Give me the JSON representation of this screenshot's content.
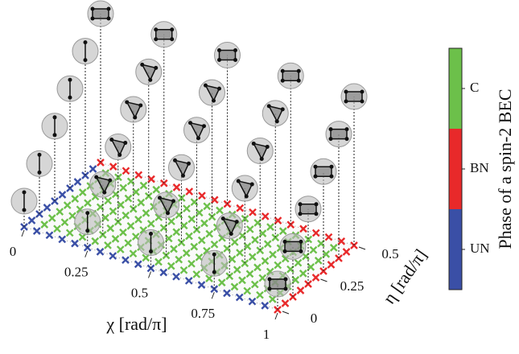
{
  "chart_data": {
    "type": "phase3d",
    "xlabel": "χ [rad/π]",
    "ylabel": "η [rad/π]",
    "colorbar_label": "Phase of a spin-2 BEC",
    "xlim": [
      0,
      1
    ],
    "ylim": [
      0,
      0.5
    ],
    "xticks": [
      0,
      0.25,
      0.5,
      0.75,
      1
    ],
    "yticks": [
      0,
      0.25,
      0.5
    ],
    "phases": [
      {
        "name": "UN",
        "color": "#3a4fa6"
      },
      {
        "name": "BN",
        "color": "#e8292a"
      },
      {
        "name": "C",
        "color": "#6cc04a"
      }
    ],
    "chi": [
      0,
      0.05,
      0.1,
      0.15,
      0.2,
      0.25,
      0.3,
      0.35,
      0.4,
      0.45,
      0.5,
      0.55,
      0.6,
      0.65,
      0.7,
      0.75,
      0.8,
      0.85,
      0.9,
      0.95,
      1
    ],
    "eta": [
      0,
      0.05,
      0.1,
      0.15,
      0.2,
      0.25,
      0.3,
      0.35,
      0.4,
      0.45,
      0.5
    ],
    "phase_grid": [
      [
        0,
        0,
        0,
        0,
        0,
        0,
        0,
        0,
        0,
        0,
        0,
        0,
        0,
        0,
        0,
        0,
        0,
        0,
        0,
        0,
        1
      ],
      [
        0,
        2,
        2,
        2,
        2,
        2,
        2,
        2,
        2,
        2,
        2,
        2,
        2,
        2,
        2,
        2,
        2,
        2,
        2,
        2,
        1
      ],
      [
        0,
        2,
        2,
        2,
        2,
        2,
        2,
        2,
        2,
        2,
        2,
        2,
        2,
        2,
        2,
        2,
        2,
        2,
        2,
        2,
        1
      ],
      [
        0,
        2,
        2,
        2,
        2,
        2,
        2,
        2,
        2,
        2,
        2,
        2,
        2,
        2,
        2,
        2,
        2,
        2,
        2,
        2,
        1
      ],
      [
        0,
        2,
        2,
        2,
        2,
        2,
        2,
        2,
        2,
        2,
        2,
        2,
        2,
        2,
        2,
        2,
        2,
        2,
        2,
        2,
        1
      ],
      [
        0,
        2,
        2,
        2,
        2,
        2,
        2,
        2,
        2,
        2,
        2,
        2,
        2,
        2,
        2,
        2,
        2,
        2,
        2,
        2,
        1
      ],
      [
        0,
        2,
        2,
        2,
        2,
        2,
        2,
        2,
        2,
        2,
        2,
        2,
        2,
        2,
        2,
        2,
        2,
        2,
        2,
        2,
        1
      ],
      [
        0,
        2,
        2,
        2,
        2,
        2,
        2,
        2,
        2,
        2,
        2,
        2,
        2,
        2,
        2,
        2,
        2,
        2,
        2,
        2,
        1
      ],
      [
        0,
        2,
        2,
        2,
        2,
        2,
        2,
        2,
        2,
        2,
        2,
        2,
        2,
        2,
        2,
        2,
        2,
        2,
        2,
        2,
        1
      ],
      [
        0,
        2,
        2,
        2,
        2,
        2,
        2,
        2,
        2,
        2,
        2,
        2,
        2,
        2,
        2,
        2,
        2,
        2,
        2,
        2,
        1
      ],
      [
        1,
        1,
        1,
        1,
        1,
        1,
        1,
        1,
        1,
        1,
        1,
        1,
        1,
        1,
        1,
        1,
        1,
        1,
        1,
        1,
        1
      ]
    ]
  }
}
